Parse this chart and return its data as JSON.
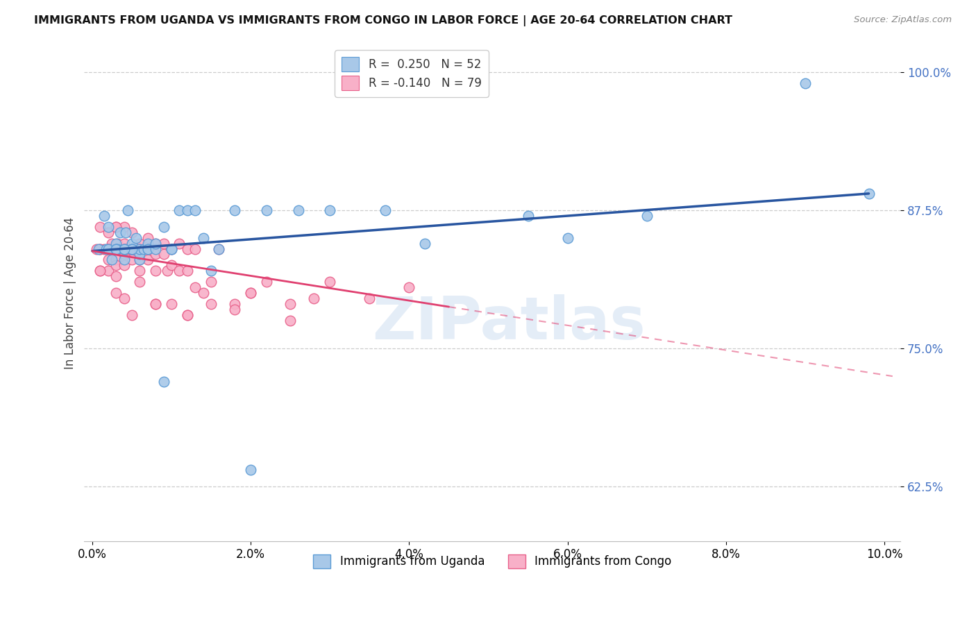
{
  "title": "IMMIGRANTS FROM UGANDA VS IMMIGRANTS FROM CONGO IN LABOR FORCE | AGE 20-64 CORRELATION CHART",
  "source": "Source: ZipAtlas.com",
  "ylabel": "In Labor Force | Age 20-64",
  "x_ticks": [
    0.0,
    0.02,
    0.04,
    0.06,
    0.08,
    0.1
  ],
  "x_tick_labels": [
    "0.0%",
    "2.0%",
    "4.0%",
    "6.0%",
    "8.0%",
    "10.0%"
  ],
  "x_lim": [
    -0.001,
    0.102
  ],
  "y_lim": [
    0.575,
    1.025
  ],
  "y_ticks": [
    0.625,
    0.75,
    0.875,
    1.0
  ],
  "y_tick_labels": [
    "62.5%",
    "75.0%",
    "87.5%",
    "100.0%"
  ],
  "watermark": "ZIPatlas",
  "uganda_color": "#a8c8e8",
  "uganda_edge": "#5b9bd5",
  "congo_color": "#f8b0c8",
  "congo_edge": "#e8608a",
  "trend_uganda_color": "#2855a0",
  "trend_congo_color": "#e04070",
  "congo_dash_threshold": 0.045,
  "legend_entries": [
    {
      "label_r": "R =  0.250",
      "label_n": "N = 52",
      "color": "#a8c8e8",
      "edge": "#5b9bd5"
    },
    {
      "label_r": "R = -0.140",
      "label_n": "N = 79",
      "color": "#f8b0c8",
      "edge": "#e8608a"
    }
  ],
  "uganda_x": [
    0.0008,
    0.0015,
    0.0018,
    0.002,
    0.002,
    0.0025,
    0.003,
    0.003,
    0.0032,
    0.0035,
    0.004,
    0.004,
    0.0042,
    0.0045,
    0.005,
    0.005,
    0.005,
    0.0055,
    0.006,
    0.006,
    0.006,
    0.0065,
    0.007,
    0.007,
    0.007,
    0.008,
    0.008,
    0.009,
    0.009,
    0.01,
    0.01,
    0.011,
    0.012,
    0.013,
    0.014,
    0.015,
    0.016,
    0.018,
    0.02,
    0.022,
    0.026,
    0.03,
    0.037,
    0.042,
    0.055,
    0.06,
    0.07,
    0.09,
    0.098,
    0.005,
    0.003,
    0.004
  ],
  "uganda_y": [
    0.84,
    0.87,
    0.84,
    0.86,
    0.84,
    0.83,
    0.845,
    0.84,
    0.84,
    0.855,
    0.83,
    0.84,
    0.855,
    0.875,
    0.84,
    0.845,
    0.84,
    0.85,
    0.83,
    0.835,
    0.84,
    0.84,
    0.84,
    0.845,
    0.84,
    0.84,
    0.845,
    0.86,
    0.72,
    0.84,
    0.84,
    0.875,
    0.875,
    0.875,
    0.85,
    0.82,
    0.84,
    0.875,
    0.64,
    0.875,
    0.875,
    0.875,
    0.875,
    0.845,
    0.87,
    0.85,
    0.87,
    0.99,
    0.89,
    0.84,
    0.84,
    0.84
  ],
  "congo_x": [
    0.0005,
    0.001,
    0.001,
    0.001,
    0.0015,
    0.002,
    0.002,
    0.002,
    0.002,
    0.0025,
    0.003,
    0.003,
    0.003,
    0.003,
    0.003,
    0.0032,
    0.0035,
    0.004,
    0.004,
    0.004,
    0.004,
    0.004,
    0.0042,
    0.0045,
    0.005,
    0.005,
    0.005,
    0.0052,
    0.006,
    0.006,
    0.006,
    0.006,
    0.0065,
    0.007,
    0.007,
    0.007,
    0.008,
    0.008,
    0.008,
    0.009,
    0.009,
    0.0095,
    0.01,
    0.01,
    0.011,
    0.011,
    0.012,
    0.012,
    0.013,
    0.013,
    0.014,
    0.015,
    0.016,
    0.018,
    0.02,
    0.022,
    0.025,
    0.028,
    0.03,
    0.035,
    0.04,
    0.025,
    0.018,
    0.012,
    0.008,
    0.005,
    0.003,
    0.002,
    0.001,
    0.006,
    0.01,
    0.015,
    0.02,
    0.012,
    0.008,
    0.004,
    0.002,
    0.001,
    0.003
  ],
  "congo_y": [
    0.84,
    0.84,
    0.82,
    0.86,
    0.84,
    0.855,
    0.84,
    0.83,
    0.82,
    0.845,
    0.86,
    0.84,
    0.83,
    0.825,
    0.815,
    0.845,
    0.84,
    0.86,
    0.845,
    0.84,
    0.835,
    0.825,
    0.84,
    0.84,
    0.855,
    0.84,
    0.83,
    0.84,
    0.845,
    0.84,
    0.83,
    0.82,
    0.84,
    0.85,
    0.84,
    0.83,
    0.845,
    0.835,
    0.82,
    0.845,
    0.835,
    0.82,
    0.84,
    0.825,
    0.845,
    0.82,
    0.84,
    0.82,
    0.84,
    0.805,
    0.8,
    0.81,
    0.84,
    0.79,
    0.8,
    0.81,
    0.79,
    0.795,
    0.81,
    0.795,
    0.805,
    0.775,
    0.785,
    0.78,
    0.79,
    0.78,
    0.8,
    0.84,
    0.82,
    0.81,
    0.79,
    0.79,
    0.8,
    0.78,
    0.79,
    0.795,
    0.84,
    0.84,
    0.86
  ]
}
